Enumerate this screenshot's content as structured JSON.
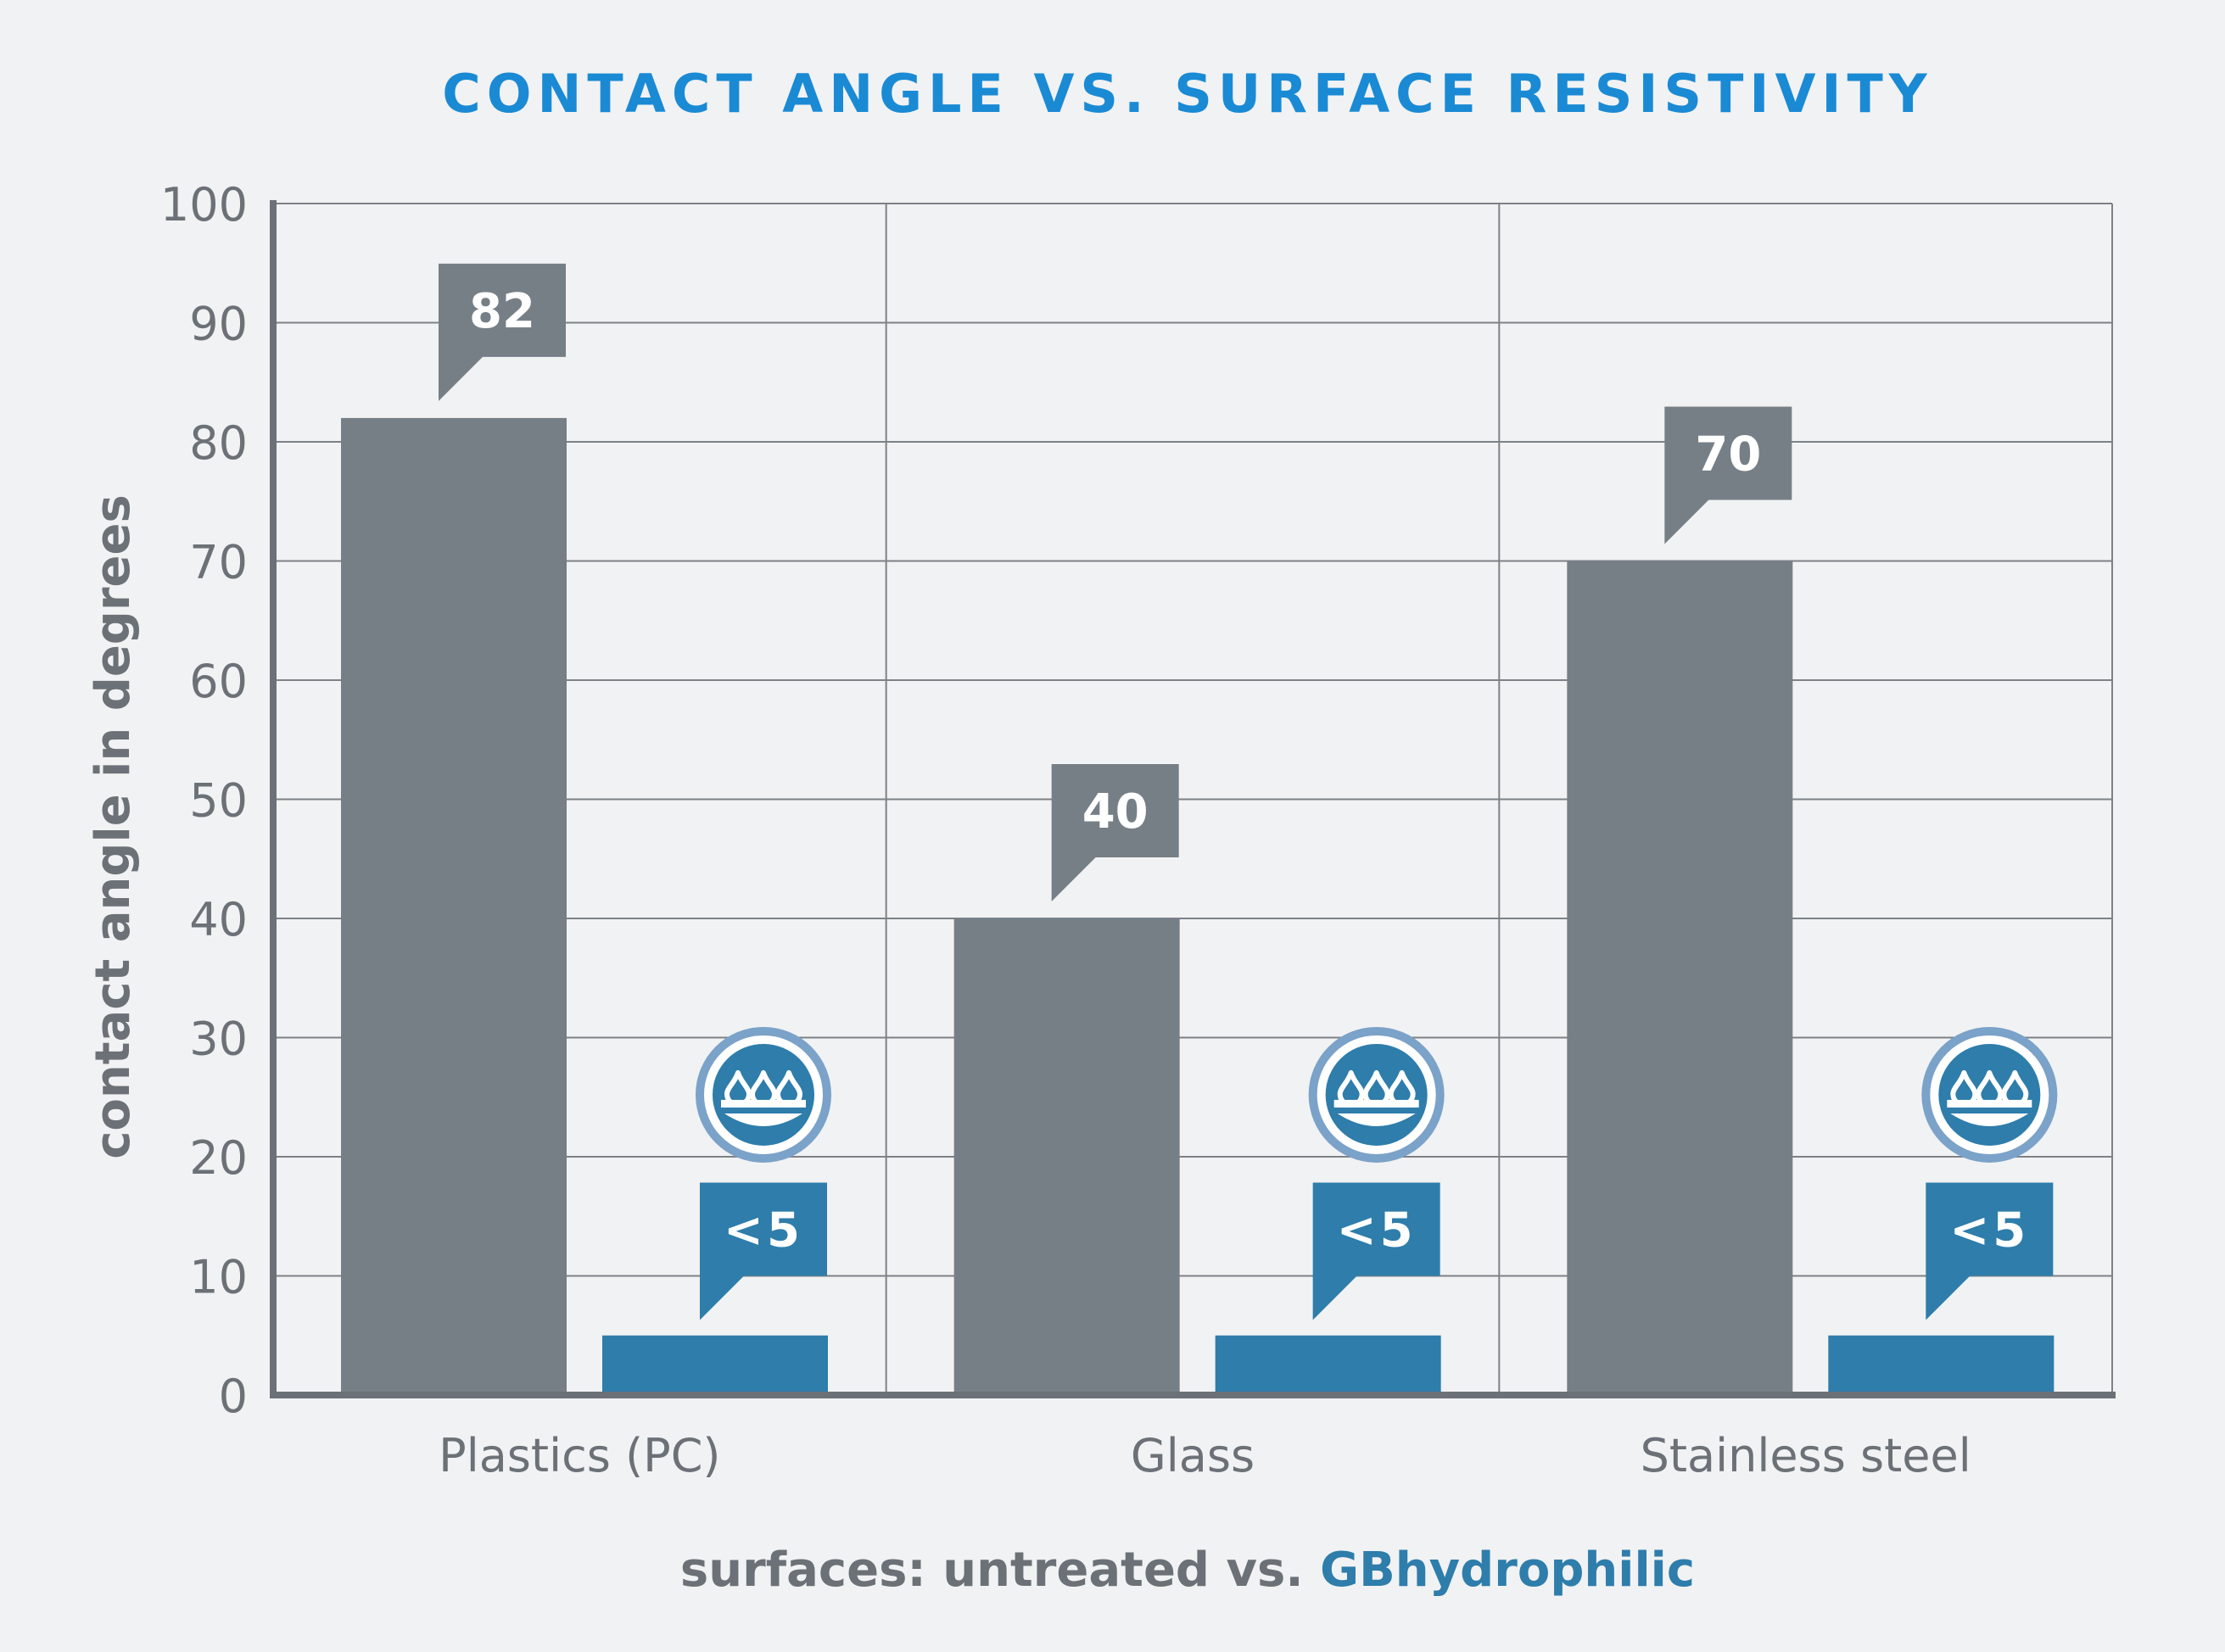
{
  "chart_data": {
    "type": "bar",
    "title": "CONTACT ANGLE VS. SURFACE RESISTIVITY",
    "ylabel": "contact angle in degrees",
    "xlabel_parts": [
      {
        "text": "surfaces: untreated vs. ",
        "color": "#6b7177"
      },
      {
        "text": "GBhydrophilic",
        "color": "#2e7dab"
      }
    ],
    "categories": [
      "Plastics (PC)",
      "Glass",
      "Stainless steel"
    ],
    "series": [
      {
        "color": "#777f86",
        "values": [
          82,
          40,
          70
        ],
        "labels": [
          "82",
          "40",
          "70"
        ]
      },
      {
        "color": "#2e7dab",
        "values": [
          5,
          5,
          5
        ],
        "labels": [
          "<5",
          "<5",
          "<5"
        ],
        "icon": "water-drops-icon"
      }
    ],
    "ylim": [
      0,
      100
    ],
    "yticks": [
      "0",
      "10",
      "20",
      "30",
      "40",
      "50",
      "60",
      "70",
      "80",
      "90",
      "100"
    ],
    "grid": true,
    "colors": {
      "background": "#f1f2f3",
      "title": "#1a8ad4",
      "axis": "#6b7177",
      "grid": "#7d8287",
      "text": "#6b7177",
      "icon_ring": "#7ba2c8"
    }
  }
}
